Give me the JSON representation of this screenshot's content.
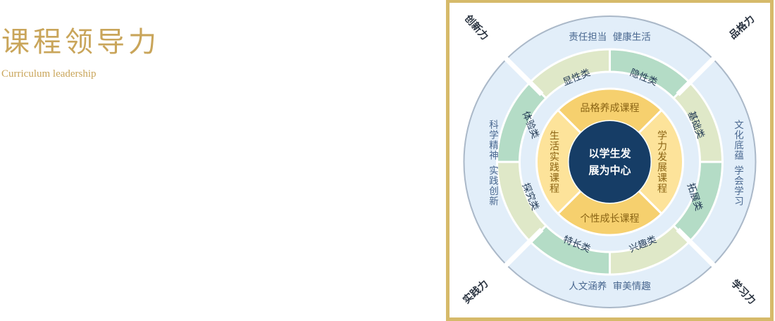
{
  "header": {
    "title": "课程领导力",
    "subtitle": "Curriculum leadership"
  },
  "diagram": {
    "center": {
      "line1": "以学生发",
      "line2": "展为中心"
    },
    "core_courses": {
      "top": "品格养成课程",
      "right": "学力发展课程",
      "bottom": "个性成长课程",
      "left": "生活实践课程"
    },
    "categories": {
      "top_left": "显性类",
      "top_right": "隐性类",
      "right_top": "基础类",
      "right_bottom": "拓展类",
      "bottom_right": "兴趣类",
      "bottom_left": "特长类",
      "left_bottom": "探究类",
      "left_top": "体验类"
    },
    "outer_ring": {
      "top": "责任担当  健康生活",
      "right_col1": "文化底蕴",
      "right_col2": "学会学习",
      "bottom": "人文涵养  审美情趣",
      "left_col1": "科学精神",
      "left_col2": "实践创新"
    },
    "corners": {
      "top_left": "创新力",
      "top_right": "品格力",
      "bottom_left": "实践力",
      "bottom_right": "学习力"
    },
    "colors": {
      "outer_ring": "#e2eef9",
      "ring_border": "#aab8c8",
      "green_light": "#dfe8c8",
      "green_teal": "#b4dcc6",
      "gold_ring": "#f6d06e",
      "gold_light": "#fde39a",
      "center": "#163d66",
      "text_blue": "#4a6890",
      "text_dark": "#243b55",
      "text_gold": "#8a6414",
      "corner_text": "#2a3340",
      "frame": "#d6ba6a",
      "title": "#c9a55a"
    }
  }
}
